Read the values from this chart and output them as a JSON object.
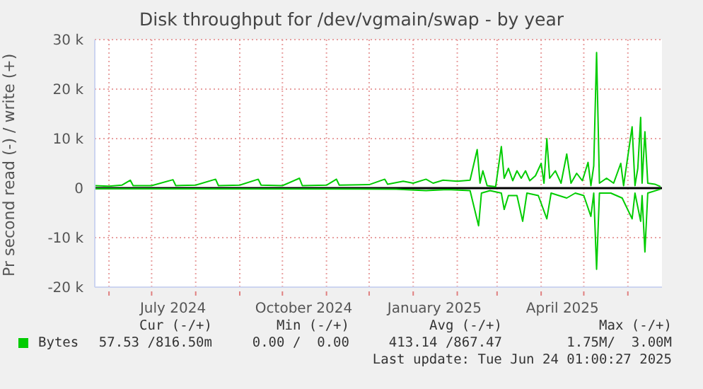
{
  "chart_data": {
    "type": "line",
    "title": "Disk throughput for /dev/vgmain/swap - by year",
    "ylabel": "Pr second read (-) / write (+)",
    "xlim": [
      "2024-05-22",
      "2025-06-25"
    ],
    "xticks": [
      {
        "value": "2024-06-01",
        "label": null
      },
      {
        "value": "2024-07-01",
        "label": null
      },
      {
        "value": "2024-07-16",
        "label": "July 2024"
      },
      {
        "value": "2024-08-01",
        "label": null
      },
      {
        "value": "2024-09-01",
        "label": null
      },
      {
        "value": "2024-10-01",
        "label": null
      },
      {
        "value": "2024-10-16",
        "label": "October 2024"
      },
      {
        "value": "2024-11-01",
        "label": null
      },
      {
        "value": "2024-12-01",
        "label": null
      },
      {
        "value": "2025-01-01",
        "label": null
      },
      {
        "value": "2025-01-16",
        "label": "January 2025"
      },
      {
        "value": "2025-02-01",
        "label": null
      },
      {
        "value": "2025-03-01",
        "label": null
      },
      {
        "value": "2025-04-01",
        "label": null
      },
      {
        "value": "2025-04-16",
        "label": "April 2025"
      },
      {
        "value": "2025-05-01",
        "label": null
      },
      {
        "value": "2025-06-01",
        "label": null
      }
    ],
    "ylim": [
      -20,
      30
    ],
    "yticks": [
      {
        "value": -20,
        "label": "-20 k"
      },
      {
        "value": -10,
        "label": "-10 k"
      },
      0,
      {
        "value": 10,
        "label": "10 k"
      },
      {
        "value": 20,
        "label": "20 k"
      },
      {
        "value": 30,
        "label": "30 k"
      }
    ],
    "grid": true,
    "legend": "bottom",
    "marker": "none",
    "line_style": "solid",
    "ref_lines": [
      {
        "axis": "y",
        "value": 0,
        "color": "#000000"
      }
    ],
    "series": [
      {
        "name": "Bytes",
        "color": "#00cc00",
        "x": [
          "2024-05-22",
          "2024-06-01",
          "2024-06-10",
          "2024-06-16",
          "2024-06-18",
          "2024-07-01",
          "2024-07-16",
          "2024-07-18",
          "2024-08-01",
          "2024-08-15",
          "2024-08-17",
          "2024-09-01",
          "2024-09-14",
          "2024-09-16",
          "2024-10-01",
          "2024-10-13",
          "2024-10-15",
          "2024-11-01",
          "2024-11-08",
          "2024-11-10",
          "2024-12-01",
          "2024-12-12",
          "2024-12-14",
          "2024-12-25",
          "2025-01-01",
          "2025-01-10",
          "2025-01-15",
          "2025-01-22",
          "2025-02-01",
          "2025-02-10",
          "2025-02-15",
          "2025-02-17",
          "2025-02-19",
          "2025-02-22",
          "2025-02-28",
          "2025-03-04",
          "2025-03-06",
          "2025-03-09",
          "2025-03-12",
          "2025-03-15",
          "2025-03-18",
          "2025-03-21",
          "2025-03-24",
          "2025-03-28",
          "2025-04-01",
          "2025-04-03",
          "2025-04-05",
          "2025-04-07",
          "2025-04-11",
          "2025-04-15",
          "2025-04-19",
          "2025-04-22",
          "2025-04-26",
          "2025-04-30",
          "2025-05-04",
          "2025-05-06",
          "2025-05-08",
          "2025-05-10",
          "2025-05-12",
          "2025-05-17",
          "2025-05-22",
          "2025-05-27",
          "2025-05-29",
          "2025-06-04",
          "2025-06-06",
          "2025-06-08",
          "2025-06-10",
          "2025-06-11",
          "2025-06-13",
          "2025-06-15",
          "2025-06-20",
          "2025-06-24"
        ],
        "values": [
          0.5,
          0.4,
          0.6,
          1.6,
          0.5,
          0.5,
          1.7,
          0.5,
          0.6,
          1.8,
          0.5,
          0.6,
          1.8,
          0.6,
          0.5,
          2.0,
          0.5,
          0.6,
          1.8,
          0.6,
          0.7,
          1.8,
          0.8,
          1.4,
          1.0,
          1.8,
          1.0,
          1.6,
          1.4,
          1.6,
          7.8,
          1.0,
          3.5,
          0.5,
          0.3,
          8.4,
          2.0,
          4.0,
          1.5,
          3.5,
          2.0,
          3.5,
          1.5,
          2.5,
          5.0,
          1.0,
          10.0,
          2.0,
          3.5,
          1.0,
          6.9,
          1.0,
          3.0,
          1.5,
          5.2,
          0.5,
          4.5,
          27.4,
          1.0,
          2.0,
          1.0,
          5.0,
          0.5,
          12.4,
          0.5,
          4.0,
          14.3,
          1.0,
          11.4,
          1.0,
          0.8,
          0.3
        ]
      },
      {
        "color": "#00cc00",
        "x": [
          "2024-05-22",
          "2024-12-20",
          "2025-01-10",
          "2025-01-25",
          "2025-02-10",
          "2025-02-16",
          "2025-02-18",
          "2025-02-24",
          "2025-03-04",
          "2025-03-06",
          "2025-03-09",
          "2025-03-15",
          "2025-03-19",
          "2025-03-22",
          "2025-03-30",
          "2025-04-05",
          "2025-04-08",
          "2025-04-19",
          "2025-04-25",
          "2025-05-01",
          "2025-05-06",
          "2025-05-08",
          "2025-05-10",
          "2025-05-12",
          "2025-05-20",
          "2025-05-28",
          "2025-06-04",
          "2025-06-06",
          "2025-06-10",
          "2025-06-11",
          "2025-06-13",
          "2025-06-15",
          "2025-06-24"
        ],
        "values": [
          -0.1,
          -0.2,
          -0.5,
          -0.3,
          -0.5,
          -7.6,
          -1.0,
          -0.5,
          -1.0,
          -4.3,
          -1.5,
          -1.5,
          -6.7,
          -1.0,
          -1.5,
          -6.2,
          -1.0,
          -2.0,
          -1.0,
          -1.5,
          -5.7,
          -1.0,
          -16.4,
          -1.0,
          -1.0,
          -2.0,
          -6.2,
          -1.0,
          -6.7,
          -1.5,
          -12.9,
          -1.0,
          -0.2
        ]
      }
    ],
    "annotations": [
      "Cur (-/+)",
      "57.53 /816.50m",
      "Min (-/+)",
      "0.00 /  0.00",
      "Avg (-/+)",
      "413.14 /867.47",
      "Max (-/+)",
      "1.75M/  3.00M",
      "Last update: Tue Jun 24 01:00:27 2025"
    ]
  }
}
